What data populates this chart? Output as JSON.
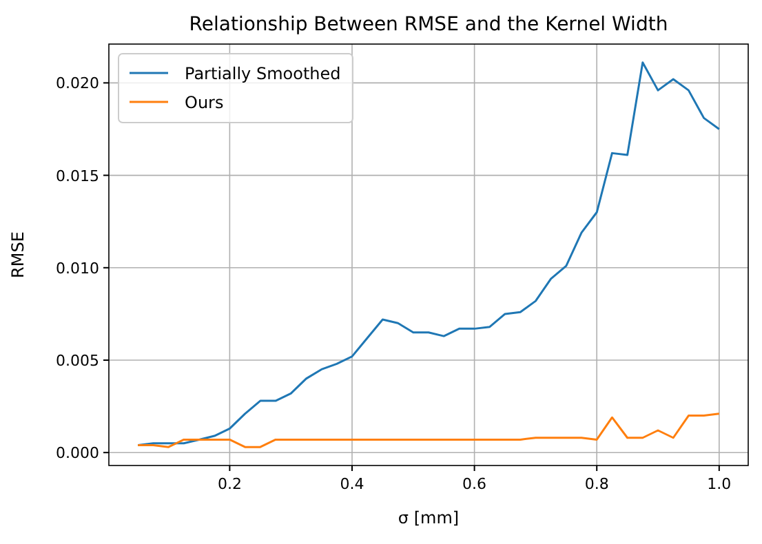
{
  "chart_data": {
    "type": "line",
    "title": "Relationship Between RMSE and the Kernel Width",
    "xlabel": "σ [mm]",
    "ylabel": "RMSE",
    "x": [
      0.05,
      0.075,
      0.1,
      0.125,
      0.15,
      0.175,
      0.2,
      0.225,
      0.25,
      0.275,
      0.3,
      0.325,
      0.35,
      0.375,
      0.4,
      0.425,
      0.45,
      0.475,
      0.5,
      0.525,
      0.55,
      0.575,
      0.6,
      0.625,
      0.65,
      0.675,
      0.7,
      0.725,
      0.75,
      0.775,
      0.8,
      0.825,
      0.85,
      0.875,
      0.9,
      0.925,
      0.95,
      0.975,
      1.0
    ],
    "series": [
      {
        "name": "Partially Smoothed",
        "color": "#1f77b4",
        "values": [
          0.0004,
          0.0005,
          0.0005,
          0.0005,
          0.0007,
          0.0009,
          0.0013,
          0.0021,
          0.0028,
          0.0028,
          0.0032,
          0.004,
          0.0045,
          0.0048,
          0.0052,
          0.0062,
          0.0072,
          0.007,
          0.0065,
          0.0065,
          0.0063,
          0.0067,
          0.0067,
          0.0068,
          0.0075,
          0.0076,
          0.0082,
          0.0094,
          0.0101,
          0.0119,
          0.013,
          0.0162,
          0.0161,
          0.0211,
          0.0196,
          0.0202,
          0.0196,
          0.0181,
          0.0175
        ]
      },
      {
        "name": "Ours",
        "color": "#ff7f0e",
        "values": [
          0.0004,
          0.0004,
          0.0003,
          0.0007,
          0.0007,
          0.0007,
          0.0007,
          0.0003,
          0.0003,
          0.0007,
          0.0007,
          0.0007,
          0.0007,
          0.0007,
          0.0007,
          0.0007,
          0.0007,
          0.0007,
          0.0007,
          0.0007,
          0.0007,
          0.0007,
          0.0007,
          0.0007,
          0.0007,
          0.0007,
          0.0008,
          0.0008,
          0.0008,
          0.0008,
          0.0007,
          0.0019,
          0.0008,
          0.0008,
          0.0012,
          0.0008,
          0.002,
          0.002,
          0.0021
        ]
      }
    ],
    "xlim": [
      0.0025,
      1.0475
    ],
    "ylim": [
      -0.0007,
      0.0221
    ],
    "xticks": [
      0.2,
      0.4,
      0.6,
      0.8,
      {
        "value": 1.0,
        "label": "1.0"
      }
    ],
    "yticks": [
      {
        "value": 0,
        "label": "0.000"
      },
      {
        "value": 0.005,
        "label": "0.005"
      },
      {
        "value": 0.01,
        "label": "0.010"
      },
      {
        "value": 0.015,
        "label": "0.015"
      },
      {
        "value": 0.02,
        "label": "0.020"
      }
    ],
    "grid": true,
    "legend": "top left",
    "line_style": "solid",
    "marker": "none"
  }
}
